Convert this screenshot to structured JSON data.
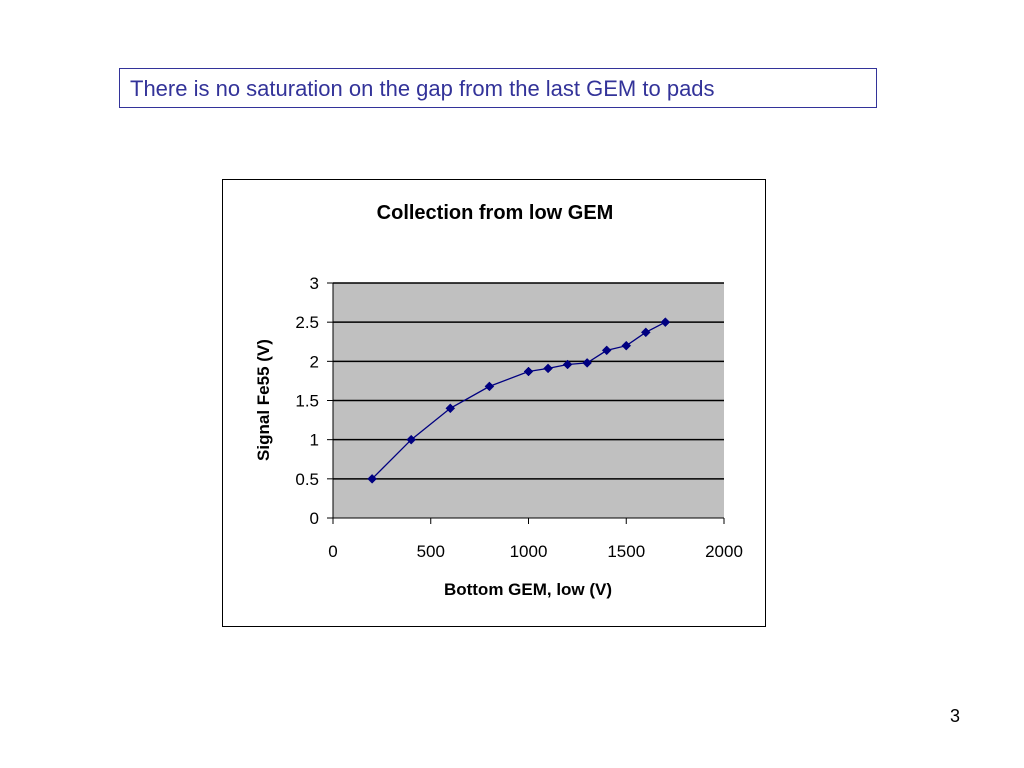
{
  "slide": {
    "title": "There is no saturation on the gap from the last GEM to pads",
    "page_number": "3"
  },
  "colors": {
    "title_text": "#333399",
    "plot_background": "#c0c0c0",
    "series": "#000080",
    "gridline": "#000000"
  },
  "chart_data": {
    "type": "line",
    "title": "Collection from low GEM",
    "xlabel": "Bottom GEM, low (V)",
    "ylabel": "Signal Fe55 (V)",
    "xlim": [
      0,
      2000
    ],
    "ylim": [
      0,
      3
    ],
    "x_ticks": [
      "0",
      "500",
      "1000",
      "1500",
      "2000"
    ],
    "y_ticks": [
      "0",
      "0.5",
      "1",
      "1.5",
      "2",
      "2.5",
      "3"
    ],
    "grid": "horizontal major gridlines",
    "legend": "none",
    "marker": "diamond",
    "series": [
      {
        "x": [
          200,
          400,
          600,
          800,
          1000,
          1100,
          1200,
          1300,
          1400,
          1500,
          1600,
          1700
        ],
        "y": [
          0.5,
          1.0,
          1.4,
          1.68,
          1.87,
          1.91,
          1.96,
          1.98,
          2.14,
          2.2,
          2.37,
          2.5
        ]
      }
    ]
  }
}
